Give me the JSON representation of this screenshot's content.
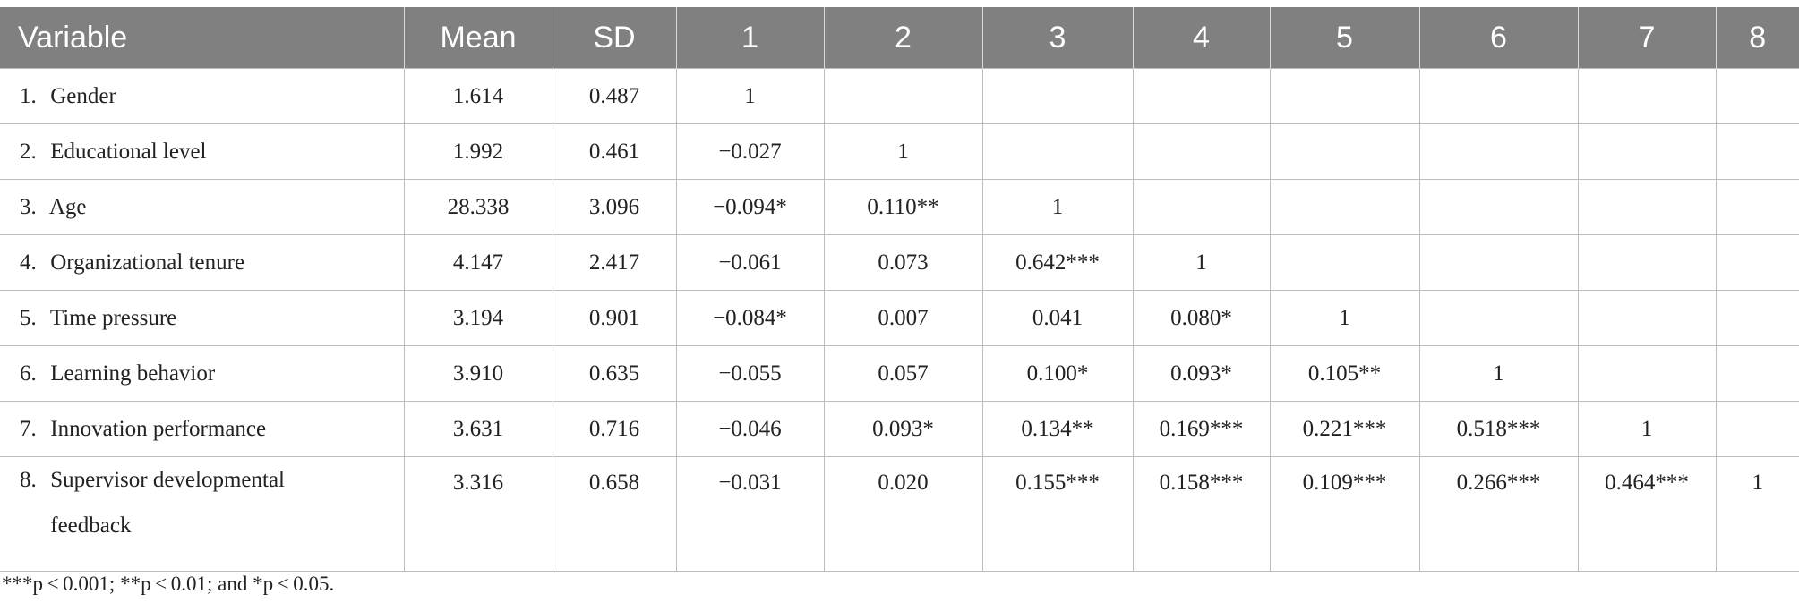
{
  "headers": [
    "Variable",
    "Mean",
    "SD",
    "1",
    "2",
    "3",
    "4",
    "5",
    "6",
    "7",
    "8"
  ],
  "rows": [
    {
      "num": "1.",
      "variable": "Gender",
      "mean": "1.614",
      "sd": "0.487",
      "c": [
        "1",
        "",
        "",
        "",
        "",
        "",
        "",
        ""
      ]
    },
    {
      "num": "2.",
      "variable": "Educational level",
      "mean": "1.992",
      "sd": "0.461",
      "c": [
        "−0.027",
        "1",
        "",
        "",
        "",
        "",
        "",
        ""
      ]
    },
    {
      "num": "3.",
      "variable": "Age",
      "mean": "28.338",
      "sd": "3.096",
      "c": [
        "−0.094*",
        "0.110**",
        "1",
        "",
        "",
        "",
        "",
        ""
      ]
    },
    {
      "num": "4.",
      "variable": "Organizational tenure",
      "mean": "4.147",
      "sd": "2.417",
      "c": [
        "−0.061",
        "0.073",
        "0.642***",
        "1",
        "",
        "",
        "",
        ""
      ]
    },
    {
      "num": "5.",
      "variable": "Time pressure",
      "mean": "3.194",
      "sd": "0.901",
      "c": [
        "−0.084*",
        "0.007",
        "0.041",
        "0.080*",
        "1",
        "",
        "",
        ""
      ]
    },
    {
      "num": "6.",
      "variable": "Learning behavior",
      "mean": "3.910",
      "sd": "0.635",
      "c": [
        "−0.055",
        "0.057",
        "0.100*",
        "0.093*",
        "0.105**",
        "1",
        "",
        ""
      ]
    },
    {
      "num": "7.",
      "variable": "Innovation performance",
      "mean": "3.631",
      "sd": "0.716",
      "c": [
        "−0.046",
        "0.093*",
        "0.134**",
        "0.169***",
        "0.221***",
        "0.518***",
        "1",
        ""
      ]
    },
    {
      "num": "8.",
      "variable": "Supervisor developmental",
      "variable_line2": "feedback",
      "mean": "3.316",
      "sd": "0.658",
      "c": [
        "−0.031",
        "0.020",
        "0.155***",
        "0.158***",
        "0.109***",
        "0.266***",
        "0.464***",
        "1"
      ]
    }
  ],
  "note": "***p < 0.001; **p < 0.01; and *p < 0.05."
}
